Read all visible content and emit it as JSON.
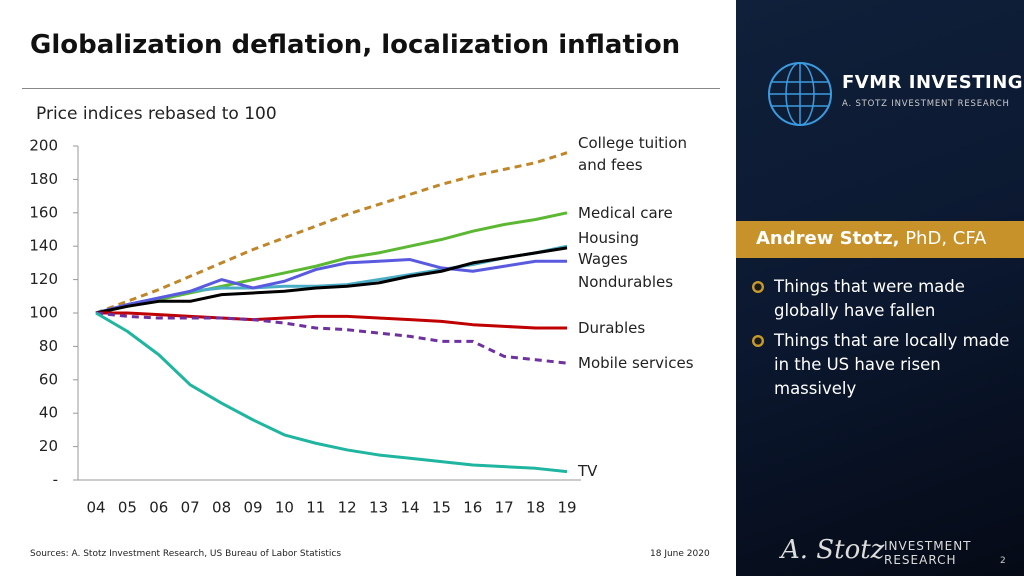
{
  "chart_data": {
    "type": "line",
    "title": "Globalization deflation, localization inflation",
    "subtitle": "Price indices rebased to 100",
    "categories": [
      "04",
      "05",
      "06",
      "07",
      "08",
      "09",
      "10",
      "11",
      "12",
      "13",
      "14",
      "15",
      "16",
      "17",
      "18",
      "19"
    ],
    "ylim": [
      0,
      200
    ],
    "yticks": [
      {
        "value": 0,
        "label": "-"
      },
      20,
      40,
      60,
      80,
      100,
      120,
      140,
      160,
      180,
      200
    ],
    "series": [
      {
        "name": "College tuition and fees",
        "color": "#c0862a",
        "style": "dashed",
        "values": [
          100,
          107,
          114,
          122,
          130,
          138,
          145,
          152,
          159,
          165,
          171,
          177,
          182,
          186,
          190,
          196
        ]
      },
      {
        "name": "Medical care",
        "color": "#5cb832",
        "style": "solid",
        "values": [
          100,
          104,
          108,
          112,
          116,
          120,
          124,
          128,
          133,
          136,
          140,
          144,
          149,
          153,
          156,
          160
        ]
      },
      {
        "name": "Housing",
        "color": "#4bacc6",
        "style": "solid",
        "values": [
          100,
          105,
          109,
          113,
          115,
          115,
          116,
          116,
          117,
          120,
          123,
          126,
          129,
          133,
          136,
          140
        ]
      },
      {
        "name": "Wages",
        "color": "#5a5ae0",
        "style": "solid",
        "values": [
          100,
          105,
          109,
          113,
          120,
          115,
          119,
          126,
          130,
          131,
          132,
          127,
          125,
          128,
          131,
          131
        ]
      },
      {
        "name": "Nondurables",
        "color": "#000000",
        "style": "solid",
        "values": [
          100,
          104,
          107,
          107,
          111,
          112,
          113,
          115,
          116,
          118,
          122,
          125,
          130,
          133,
          136,
          139
        ]
      },
      {
        "name": "Durables",
        "color": "#c00000",
        "style": "solid",
        "values": [
          100,
          100,
          99,
          98,
          97,
          96,
          97,
          98,
          98,
          97,
          96,
          95,
          93,
          92,
          91,
          91
        ]
      },
      {
        "name": "Mobile services",
        "color": "#7030a0",
        "style": "dashed",
        "values": [
          100,
          98,
          97,
          97,
          97,
          96,
          94,
          91,
          90,
          88,
          86,
          83,
          83,
          74,
          72,
          70
        ]
      },
      {
        "name": "TV",
        "color": "#1fb5a0",
        "style": "solid",
        "values": [
          100,
          89,
          75,
          57,
          46,
          36,
          27,
          22,
          18,
          15,
          13,
          11,
          9,
          8,
          7,
          5
        ]
      }
    ]
  },
  "footer": {
    "source": "Sources: A. Stotz Investment Research, US Bureau of Labor Statistics",
    "date": "18 June 2020",
    "page": "2"
  },
  "sidebar": {
    "brand": "FVMR INVESTING",
    "tagline": "A. STOTZ INVESTMENT RESEARCH",
    "name": "Andrew Stotz,",
    "credentials": "PhD, CFA",
    "bullets": [
      "Things that were made globally have fallen",
      "Things that are locally made in the US have risen massively"
    ],
    "signature": "A. Stotz",
    "logo_line1": "INVESTMENT",
    "logo_line2": "RESEARCH"
  }
}
